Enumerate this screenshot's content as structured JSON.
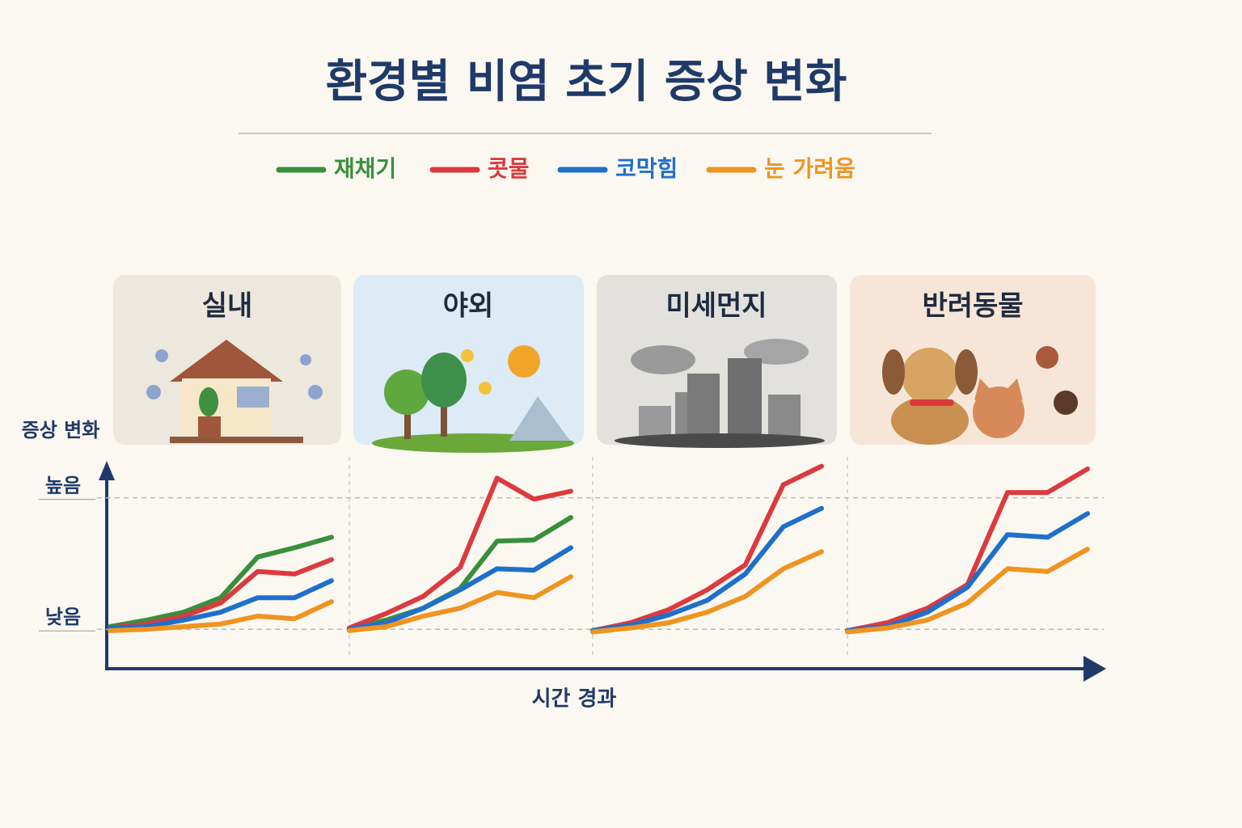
{
  "chart_data": {
    "type": "line",
    "title": "환경별 비염 초기 증상 변화",
    "legend": [
      {
        "name": "재채기",
        "color": "#3a8f3a"
      },
      {
        "name": "콧물",
        "color": "#dc3a3f"
      },
      {
        "name": "코막힘",
        "color": "#1f6fcc"
      },
      {
        "name": "눈 가려움",
        "color": "#ef9420"
      }
    ],
    "y_label": "증상 변화",
    "x_label": "시간 경과",
    "ylim": [
      -0.3,
      1.25
    ],
    "yticks": [
      {
        "value": 0,
        "label": "낮음"
      },
      {
        "value": 1,
        "label": "높음"
      }
    ],
    "grid": true,
    "panels": [
      {
        "title": "실내",
        "series": [
          [
            0.02,
            0.07,
            0.13,
            0.24,
            0.55,
            0.62,
            0.7
          ],
          [
            0.01,
            0.04,
            0.1,
            0.2,
            0.44,
            0.42,
            0.53
          ],
          [
            0.01,
            0.02,
            0.07,
            0.13,
            0.24,
            0.24,
            0.37
          ],
          [
            -0.01,
            0,
            0.02,
            0.04,
            0.1,
            0.08,
            0.21
          ]
        ]
      },
      {
        "title": "야외",
        "series": [
          [
            0,
            0.07,
            0.16,
            0.31,
            0.67,
            0.68,
            0.85
          ],
          [
            0.01,
            0.12,
            0.25,
            0.47,
            1.15,
            0.99,
            1.05
          ],
          [
            0,
            0.05,
            0.16,
            0.3,
            0.46,
            0.45,
            0.62
          ],
          [
            -0.01,
            0.02,
            0.1,
            0.16,
            0.28,
            0.24,
            0.4
          ]
        ]
      },
      {
        "title": "미세먼지",
        "series": [
          null,
          [
            -0.01,
            0.05,
            0.15,
            0.3,
            0.49,
            1.1,
            1.24
          ],
          [
            -0.01,
            0.03,
            0.11,
            0.22,
            0.42,
            0.78,
            0.92
          ],
          [
            -0.02,
            0.01,
            0.05,
            0.13,
            0.25,
            0.46,
            0.59
          ]
        ]
      },
      {
        "title": "반려동물",
        "series": [
          null,
          [
            -0.01,
            0.05,
            0.16,
            0.34,
            1.04,
            1.04,
            1.22
          ],
          [
            -0.01,
            0.02,
            0.13,
            0.32,
            0.72,
            0.7,
            0.88
          ],
          [
            -0.02,
            0.01,
            0.07,
            0.2,
            0.46,
            0.44,
            0.61
          ]
        ]
      }
    ]
  }
}
